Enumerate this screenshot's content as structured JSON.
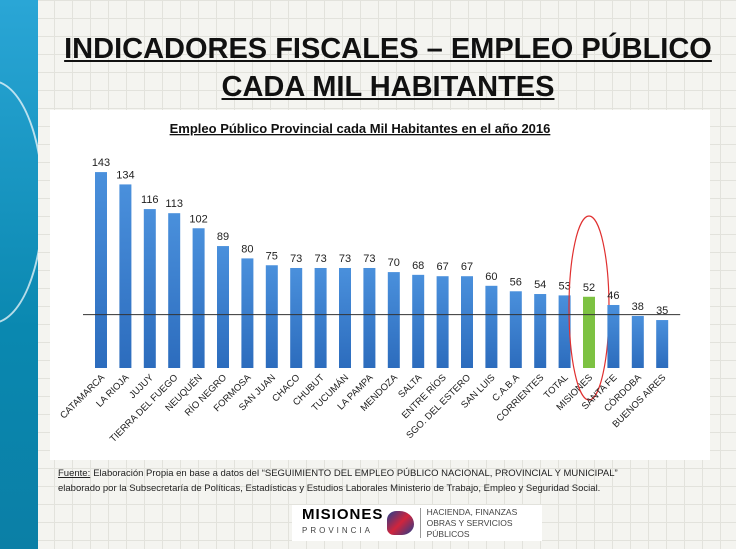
{
  "title": "INDICADORES FISCALES – EMPLEO PÚBLICO CADA MIL HABITANTES",
  "source": {
    "label": "Fuente:",
    "text": "Elaboración Propia en base a datos del “SEGUIMIENTO DEL EMPLEO PÚBLICO NACIONAL, PROVINCIAL Y MUNICIPAL”",
    "text2": "elaborado por  la Subsecretaría de Políticas, Estadísticas y Estudios Laborales Ministerio de Trabajo, Empleo y Seguridad Social."
  },
  "logo": {
    "name": "MISIONES",
    "sub": "PROVINCIA",
    "dept1": "HACIENDA, FINANZAS",
    "dept2": "OBRAS Y SERVICIOS PÚBLICOS"
  },
  "chart_data": {
    "type": "bar",
    "title": "Empleo Público Provincial cada Mil Habitantes en el año 2016",
    "categories": [
      "CATAMARCA",
      "LA RIOJA",
      "JUJUY",
      "TIERRA DEL FUEGO",
      "NEUQUÉN",
      "RÍO NEGRO",
      "FORMOSA",
      "SAN JUAN",
      "CHACO",
      "CHUBUT",
      "TUCUMÁN",
      "LA PAMPA",
      "MENDOZA",
      "SALTA",
      "ENTRE RÍOS",
      "SGO. DEL ESTERO",
      "SAN LUIS",
      "C.A.B.A",
      "CORRIENTES",
      "TOTAL",
      "MISIONES",
      "SANTA FE",
      "CÓRDOBA",
      "BUENOS AIRES"
    ],
    "values": [
      143,
      134,
      116,
      113,
      102,
      89,
      80,
      75,
      73,
      73,
      73,
      73,
      70,
      68,
      67,
      67,
      60,
      56,
      54,
      53,
      52,
      46,
      38,
      35
    ],
    "ylim": [
      0,
      150
    ],
    "reference_line": 39,
    "highlight": "MISIONES",
    "colors": {
      "bar": "#3a7fcf",
      "highlight": "#7dc242",
      "circle": "#e03030"
    },
    "grid": false
  }
}
